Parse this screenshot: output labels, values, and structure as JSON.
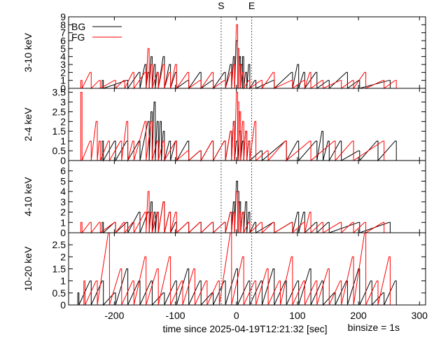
{
  "chart_data": {
    "type": "line",
    "time_label": "time since 2025-04-19T12:21:32 [sec]",
    "binsize_label": "binsize = 1s",
    "xlim": [
      -275,
      310
    ],
    "xticks": [
      -200,
      -100,
      0,
      100,
      200,
      300
    ],
    "xtick_labels": [
      "-200",
      "-100",
      "0",
      "100",
      "200",
      "300"
    ],
    "markers": [
      {
        "label": "S",
        "x": -25
      },
      {
        "label": "E",
        "x": 25
      }
    ],
    "legend": [
      {
        "name": "BG",
        "color": "#000000"
      },
      {
        "name": "FG",
        "color": "#ff0000"
      }
    ],
    "panels": [
      {
        "ylabel": "3-10 keV",
        "ylim": [
          0,
          9
        ],
        "yticks": [
          0,
          1,
          2,
          3,
          4,
          5,
          6,
          7,
          8,
          9
        ],
        "ytick_labels": [
          "0",
          "1",
          "2",
          "3",
          "4",
          "5",
          "6",
          "7",
          "8",
          "9"
        ],
        "show_legend": true,
        "series": [
          {
            "name": "BG",
            "color": "#000000",
            "x": [
              -220,
              -180,
              -160,
              -150,
              -145,
              -140,
              -135,
              -130,
              -120,
              -110,
              -100,
              -80,
              -60,
              -40,
              -20,
              -10,
              -5,
              0,
              2,
              5,
              8,
              10,
              15,
              20,
              30,
              60,
              90,
              100,
              110,
              130,
              150,
              180,
              200,
              250
            ],
            "y": [
              1,
              1,
              2,
              3,
              2,
              4,
              3,
              2,
              4,
              3,
              2,
              1,
              2,
              1,
              2,
              3,
              4,
              6,
              5,
              4,
              3,
              4,
              2,
              3,
              1,
              1,
              2,
              3,
              2,
              2,
              1,
              2,
              1,
              1
            ]
          },
          {
            "name": "FG",
            "color": "#ff0000",
            "x": [
              -255,
              -240,
              -225,
              -200,
              -185,
              -170,
              -150,
              -145,
              -140,
              -130,
              -120,
              -110,
              -100,
              -80,
              -60,
              -40,
              -20,
              -10,
              -5,
              0,
              2,
              5,
              10,
              20,
              40,
              60,
              90,
              110,
              120,
              140,
              170,
              190,
              210,
              240,
              260
            ],
            "y": [
              1,
              2,
              1,
              1,
              1,
              2,
              2,
              5,
              3,
              2,
              3,
              2,
              3,
              2,
              1,
              2,
              1,
              2,
              3,
              8,
              5,
              3,
              2,
              1,
              1,
              2,
              1,
              1,
              2,
              1,
              1,
              1,
              2,
              1,
              1
            ]
          }
        ]
      },
      {
        "ylabel": "2-4 keV",
        "ylim": [
          0,
          3.7
        ],
        "yticks": [
          0,
          0.5,
          1,
          1.5,
          2,
          2.5,
          3,
          3.5
        ],
        "ytick_labels": [
          "0",
          "0.5",
          "1",
          "1.5",
          "2",
          "2.5",
          "3",
          "3.5"
        ],
        "show_legend": false,
        "series": [
          {
            "name": "BG",
            "color": "#000000",
            "x": [
              -220,
              -200,
              -180,
              -160,
              -145,
              -140,
              -135,
              -130,
              -125,
              -120,
              -110,
              -100,
              -80,
              -60,
              -40,
              -20,
              -10,
              -5,
              0,
              5,
              10,
              15,
              20,
              40,
              80,
              100,
              130,
              140,
              150,
              170,
              200,
              230,
              260
            ],
            "y": [
              1,
              1,
              1,
              1,
              2,
              2.5,
              3,
              2,
              2,
              1.5,
              1,
              1,
              1,
              0.5,
              1,
              1,
              1.5,
              2,
              1,
              1.5,
              1,
              1.5,
              1,
              0.5,
              1,
              1,
              1,
              1.5,
              1,
              1,
              0.5,
              1,
              1
            ]
          },
          {
            "name": "FG",
            "color": "#ff0000",
            "x": [
              -255,
              -240,
              -230,
              -225,
              -210,
              -190,
              -180,
              -170,
              -150,
              -140,
              -130,
              -120,
              -100,
              -80,
              -60,
              -40,
              -20,
              -10,
              -5,
              0,
              2,
              5,
              10,
              15,
              20,
              30,
              50,
              80,
              120,
              160,
              190,
              240
            ],
            "y": [
              3.5,
              1,
              2,
              1,
              1,
              1,
              2,
              1,
              2,
              2,
              1,
              1,
              1,
              0.5,
              0.5,
              1,
              1,
              1.5,
              2,
              3.5,
              3,
              2.5,
              2,
              1.5,
              1,
              2,
              0.5,
              1,
              1,
              1,
              1,
              1
            ]
          }
        ]
      },
      {
        "ylabel": "4-10 keV",
        "ylim": [
          0,
          7
        ],
        "yticks": [
          0,
          1,
          2,
          3,
          4,
          5,
          6
        ],
        "ytick_labels": [
          "0",
          "1",
          "2",
          "3",
          "4",
          "5",
          "6"
        ],
        "show_legend": false,
        "series": [
          {
            "name": "BG",
            "color": "#000000",
            "x": [
              -220,
              -200,
              -180,
              -160,
              -145,
              -140,
              -135,
              -130,
              -120,
              -110,
              -100,
              -80,
              -60,
              -40,
              -20,
              -10,
              -5,
              0,
              2,
              5,
              10,
              15,
              20,
              30,
              60,
              90,
              100,
              110,
              130,
              150,
              200,
              250
            ],
            "y": [
              1,
              1,
              1,
              2,
              2,
              3,
              2,
              2,
              3,
              2,
              1,
              1,
              1,
              1,
              1,
              2,
              3,
              5,
              4,
              3,
              2,
              3,
              2,
              1,
              1,
              1,
              2,
              2,
              1,
              1,
              1,
              1
            ]
          },
          {
            "name": "FG",
            "color": "#ff0000",
            "x": [
              -255,
              -240,
              -225,
              -200,
              -185,
              -170,
              -150,
              -145,
              -140,
              -130,
              -120,
              -110,
              -100,
              -80,
              -60,
              -40,
              -20,
              -10,
              -5,
              0,
              2,
              5,
              10,
              20,
              40,
              60,
              90,
              110,
              120,
              140,
              170,
              190,
              210,
              240
            ],
            "y": [
              1,
              1,
              1,
              1,
              1,
              1,
              2,
              4,
              2,
              2,
              3,
              2,
              2,
              1,
              1,
              1,
              1,
              2,
              2,
              4,
              3,
              2,
              2,
              1,
              1,
              1,
              1,
              1,
              2,
              1,
              1,
              1,
              1,
              1
            ]
          }
        ]
      },
      {
        "ylabel": "10-20 keV",
        "ylim": [
          0,
          3
        ],
        "yticks": [
          0,
          0.5,
          1,
          1.5,
          2,
          2.5
        ],
        "ytick_labels": [
          "0",
          "0.5",
          "1",
          "1.5",
          "2",
          "2.5"
        ],
        "show_legend": false,
        "series": [
          {
            "name": "BG",
            "color": "#000000",
            "x": [
              -260,
              -240,
              -220,
              -200,
              -180,
              -160,
              -140,
              -120,
              -100,
              -80,
              -60,
              -40,
              -20,
              0,
              20,
              40,
              60,
              80,
              100,
              120,
              140,
              160,
              180,
              200,
              220,
              240,
              260
            ],
            "y": [
              0.5,
              1,
              1,
              0.5,
              1.5,
              1,
              1,
              0.5,
              1,
              1.5,
              1,
              0.5,
              1,
              1.5,
              1,
              1,
              1.5,
              1,
              1,
              1.5,
              1,
              0.5,
              1,
              1.5,
              1,
              0.5,
              1
            ]
          },
          {
            "name": "FG",
            "color": "#ff0000",
            "x": [
              -250,
              -230,
              -210,
              -190,
              -170,
              -150,
              -130,
              -110,
              -90,
              -70,
              -50,
              -30,
              -10,
              10,
              30,
              50,
              70,
              90,
              110,
              130,
              150,
              170,
              190,
              210,
              230,
              250
            ],
            "y": [
              1,
              1,
              3,
              1.5,
              1,
              2,
              1.5,
              2,
              1,
              1.5,
              1,
              1,
              3,
              2,
              1,
              1.5,
              1,
              2,
              1,
              1,
              1.5,
              1,
              2,
              3,
              1,
              2
            ]
          }
        ]
      }
    ]
  }
}
